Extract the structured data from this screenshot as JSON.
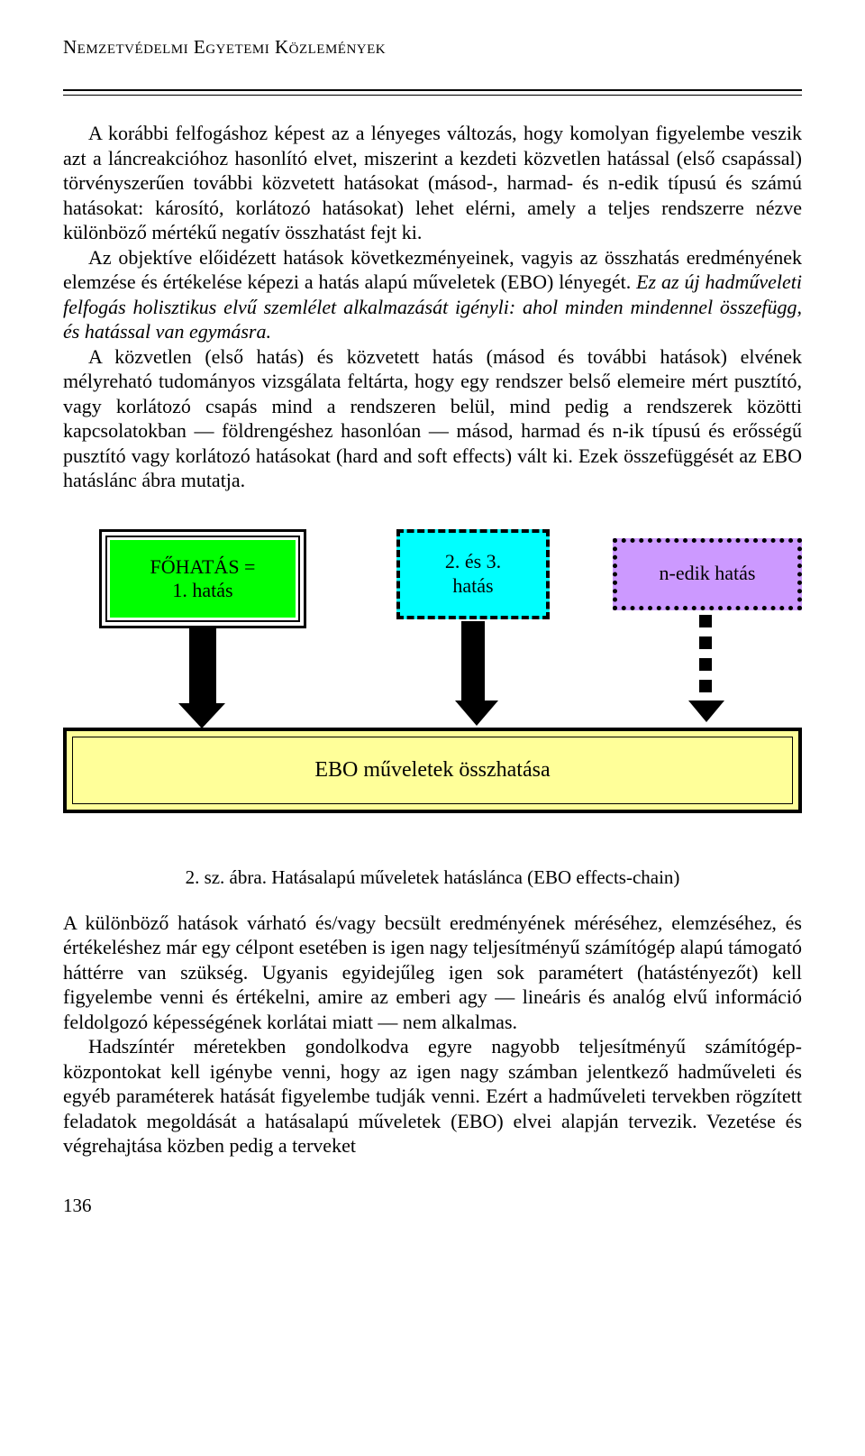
{
  "header": {
    "title": "Nemzetvédelmi Egyetemi Közlemények"
  },
  "paragraphs": {
    "p1": "A korábbi felfogáshoz képest az a lényeges változás, hogy komolyan figyelembe veszik azt a láncreakcióhoz hasonlító elvet, miszerint a kezdeti közvetlen hatással (első csapással) törvényszerűen további közvetett hatásokat (másod-, harmad- és n-edik típusú és számú hatásokat: károsító, korlátozó hatásokat) lehet elérni, amely a teljes rendszerre nézve különböző mértékű negatív összhatást fejt ki.",
    "p2a": "Az objektíve előidézett hatások következményeinek, vagyis az összhatás eredményének elemzése és értékelése képezi a hatás alapú műveletek (EBO) lényegét. ",
    "p2b": "Ez az új hadműveleti felfogás holisztikus elvű szemlélet alkalmazását igényli: ahol minden mindennel összefügg, és hatással van egymásra.",
    "p3": "A közvetlen (első hatás) és közvetett hatás (másod és további hatások) elvének mélyreható tudományos vizsgálata feltárta, hogy egy rendszer belső elemeire mért pusztító, vagy korlátozó csapás mind a rendszeren belül, mind pedig a rendszerek közötti kapcsolatokban — földrengéshez hasonlóan — másod, harmad és n-ik típusú és erősségű pusztító vagy korlátozó hatásokat (hard and soft effects) vált ki. Ezek összefüggését az EBO hatáslánc ábra mutatja.",
    "p4": "A különböző hatások várható és/vagy becsült eredményének méréséhez, elemzéséhez, és értékeléshez már egy célpont esetében is igen nagy teljesítményű számítógép alapú támogató háttérre van szükség. Ugyanis egyidejűleg igen sok paramétert (hatástényezőt) kell figyelembe venni és értékelni, amire az emberi agy — lineáris és analóg elvű információ feldolgozó képességének korlátai miatt — nem alkalmas.",
    "p5": "Hadszíntér méretekben gondolkodva egyre nagyobb teljesítményű számítógép-központokat kell igénybe venni, hogy az igen nagy számban jelentkező hadműveleti és egyéb paraméterek hatását figyelembe tudják venni. Ezért a hadműveleti tervekben rögzített feladatok megoldását a hatásalapú műveletek (EBO) elvei alapján tervezik. Vezetése és végrehajtása közben pedig a terveket"
  },
  "diagram": {
    "box1_line1": "FŐHATÁS =",
    "box1_line2": "1. hatás",
    "box2_line1": "2. és 3.",
    "box2_line2": "hatás",
    "box3": "n-edik hatás",
    "box4": "EBO műveletek összhatása",
    "colors": {
      "box1_bg": "#00ff00",
      "box2_bg": "#00ffff",
      "box3_bg": "#cc99ff",
      "box4_bg": "#ffff99",
      "border": "#000000"
    }
  },
  "caption": "2. sz. ábra. Hatásalapú műveletek hatáslánca (EBO effects-chain)",
  "page_number": "136"
}
